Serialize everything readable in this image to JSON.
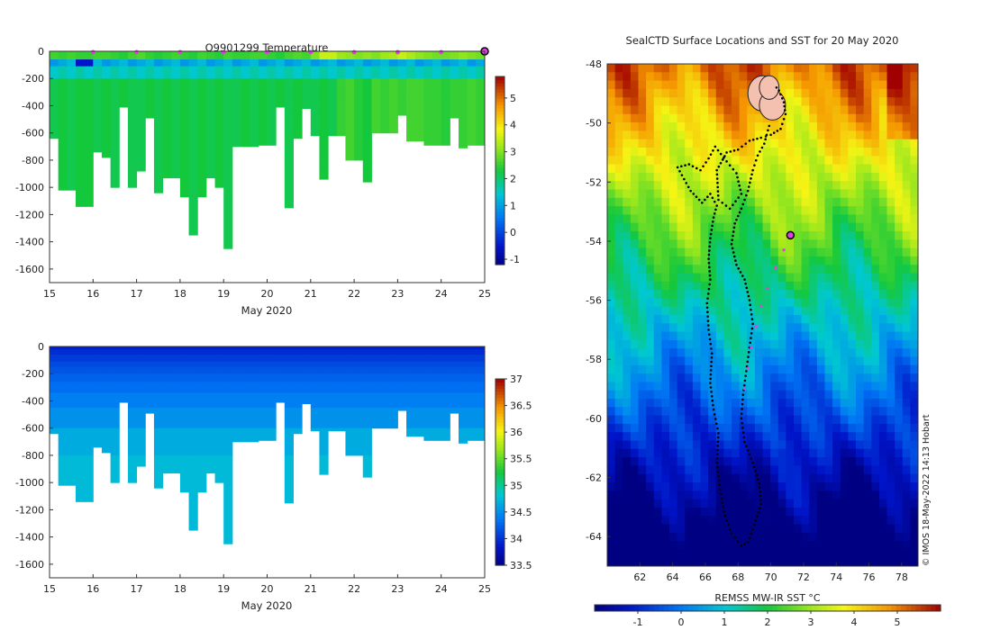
{
  "chart_data": [
    {
      "id": "temperature",
      "type": "heatmap",
      "title": "Q9901299  Temperature",
      "xlabel": "May 2020",
      "ylabel": "",
      "xlim": [
        15,
        25
      ],
      "ylim": [
        -1700,
        0
      ],
      "x_ticks": [
        15,
        16,
        17,
        18,
        19,
        20,
        21,
        22,
        23,
        24,
        25
      ],
      "y_ticks": [
        0,
        -200,
        -400,
        -600,
        -800,
        -1000,
        -1200,
        -1400,
        -1600
      ],
      "colorbar": {
        "min": -1.2,
        "max": 5.8,
        "ticks": [
          -1,
          0,
          1,
          2,
          3,
          4,
          5
        ],
        "labels": [
          "-1",
          "0",
          "1",
          "2",
          "3",
          "4",
          "5"
        ]
      },
      "markers_x": [
        16,
        17,
        18,
        19,
        20,
        21,
        22,
        23,
        24,
        25
      ],
      "profiles": {
        "x": [
          15.0,
          15.2,
          15.4,
          15.6,
          15.8,
          16.0,
          16.2,
          16.4,
          16.6,
          16.8,
          17.0,
          17.2,
          17.4,
          17.6,
          17.8,
          18.0,
          18.2,
          18.4,
          18.6,
          18.8,
          19.0,
          19.2,
          19.4,
          19.6,
          19.8,
          20.0,
          20.2,
          20.4,
          20.6,
          20.8,
          21.0,
          21.2,
          21.4,
          21.6,
          21.8,
          22.0,
          22.2,
          22.4,
          22.6,
          22.8,
          23.0,
          23.2,
          23.4,
          23.6,
          23.8,
          24.0,
          24.2,
          24.4,
          24.6,
          24.8
        ],
        "max_depth": [
          640,
          1020,
          1020,
          1140,
          1140,
          740,
          780,
          1000,
          410,
          1000,
          880,
          490,
          1040,
          930,
          930,
          1070,
          1350,
          1070,
          930,
          1000,
          1450,
          700,
          700,
          700,
          690,
          690,
          410,
          1150,
          640,
          420,
          620,
          940,
          620,
          620,
          800,
          800,
          960,
          600,
          600,
          600,
          470,
          660,
          660,
          690,
          690,
          690,
          490,
          710,
          690,
          690
        ],
        "surface_temp": [
          2.6,
          2.5,
          2.6,
          2.5,
          2.5,
          2.6,
          2.6,
          2.5,
          2.4,
          2.6,
          2.7,
          2.5,
          2.4,
          2.5,
          2.6,
          2.5,
          2.4,
          2.6,
          2.5,
          2.4,
          2.6,
          2.5,
          2.5,
          2.6,
          2.6,
          2.5,
          2.4,
          2.6,
          2.7,
          2.6,
          3.0,
          3.5,
          3.5,
          3.2,
          3.1,
          3.0,
          3.1,
          3.0,
          3.2,
          3.3,
          3.5,
          3.3,
          3.1,
          3.0,
          2.9,
          2.9,
          3.0,
          3.1,
          3.0,
          2.9
        ],
        "deep_temp": [
          2.2,
          2.3,
          2.2,
          2.3,
          2.3,
          2.2,
          2.3,
          2.2,
          2.3,
          2.2,
          2.2,
          2.3,
          2.2,
          2.3,
          2.2,
          2.3,
          2.2,
          2.3,
          2.2,
          2.3,
          2.2,
          2.2,
          2.3,
          2.2,
          2.3,
          2.2,
          2.3,
          2.2,
          2.3,
          2.2,
          2.2,
          2.3,
          2.2,
          2.5,
          2.6,
          2.4,
          2.3,
          2.6,
          2.5,
          2.6,
          2.5,
          2.6,
          2.6,
          2.5,
          2.5,
          2.4,
          2.5,
          2.5,
          2.6,
          2.5
        ]
      }
    },
    {
      "id": "salinity",
      "type": "heatmap",
      "title": "",
      "xlabel": "May 2020",
      "ylabel": "",
      "xlim": [
        15,
        25
      ],
      "ylim": [
        -1700,
        0
      ],
      "x_ticks": [
        15,
        16,
        17,
        18,
        19,
        20,
        21,
        22,
        23,
        24,
        25
      ],
      "y_ticks": [
        0,
        -200,
        -400,
        -600,
        -800,
        -1000,
        -1200,
        -1400,
        -1600
      ],
      "colorbar": {
        "min": 33.5,
        "max": 37.0,
        "ticks": [
          33.5,
          34,
          34.5,
          35,
          35.5,
          36,
          36.5,
          37
        ],
        "labels": [
          "33.5",
          "34",
          "34.5",
          "35",
          "35.5",
          "36",
          "36.5",
          "37"
        ]
      },
      "surface_sal": 33.9,
      "deep_sal": 34.75
    },
    {
      "id": "sst_map",
      "type": "heatmap",
      "title": "SealCTD Surface Locations and SST for 20 May 2020",
      "xlabel": "",
      "ylabel": "",
      "xlim": [
        60,
        79
      ],
      "ylim": [
        -65,
        -48
      ],
      "x_ticks": [
        62,
        64,
        66,
        68,
        70,
        72,
        74,
        76,
        78
      ],
      "y_ticks": [
        -48,
        -50,
        -52,
        -54,
        -56,
        -58,
        -60,
        -62,
        -64
      ],
      "colorbar": {
        "label": "REMSS MW-IR SST °C",
        "min": -2.0,
        "max": 6.0,
        "ticks": [
          -1,
          0,
          1,
          2,
          3,
          4,
          5
        ],
        "labels": [
          "-1",
          "0",
          "1",
          "2",
          "3",
          "4",
          "5"
        ]
      },
      "credit": "© IMOS 18-May-2022 14:13 Hobart",
      "current_position": [
        71.2,
        -53.8
      ],
      "recent_track": [
        [
          71.2,
          -53.8
        ],
        [
          70.8,
          -54.3
        ],
        [
          70.3,
          -54.9
        ],
        [
          69.8,
          -55.6
        ],
        [
          69.4,
          -56.2
        ],
        [
          69.1,
          -56.9
        ],
        [
          68.8,
          -57.6
        ],
        [
          68.6,
          -58.3
        ],
        [
          68.4,
          -59.0
        ]
      ],
      "track": [
        [
          68.2,
          -64.3
        ],
        [
          67.6,
          -63.9
        ],
        [
          67.2,
          -63.3
        ],
        [
          66.9,
          -62.4
        ],
        [
          66.7,
          -61.5
        ],
        [
          66.8,
          -60.5
        ],
        [
          66.5,
          -59.7
        ],
        [
          66.3,
          -58.8
        ],
        [
          66.4,
          -57.8
        ],
        [
          66.2,
          -57.0
        ],
        [
          66.1,
          -56.1
        ],
        [
          66.3,
          -55.3
        ],
        [
          66.2,
          -54.6
        ],
        [
          66.3,
          -53.9
        ],
        [
          66.5,
          -53.2
        ],
        [
          66.7,
          -52.8
        ],
        [
          66.3,
          -52.4
        ],
        [
          65.8,
          -52.7
        ],
        [
          65.1,
          -52.3
        ],
        [
          64.7,
          -51.9
        ],
        [
          64.3,
          -51.5
        ],
        [
          65.0,
          -51.4
        ],
        [
          65.7,
          -51.6
        ],
        [
          66.2,
          -51.2
        ],
        [
          66.6,
          -50.8
        ],
        [
          67.3,
          -51.3
        ],
        [
          67.9,
          -51.7
        ],
        [
          68.2,
          -52.4
        ],
        [
          67.5,
          -52.9
        ],
        [
          66.8,
          -52.6
        ],
        [
          66.7,
          -51.6
        ],
        [
          67.3,
          -51.0
        ],
        [
          68.0,
          -50.9
        ],
        [
          68.7,
          -50.6
        ],
        [
          69.4,
          -50.5
        ],
        [
          70.0,
          -50.4
        ],
        [
          70.6,
          -50.2
        ],
        [
          70.9,
          -49.7
        ],
        [
          70.8,
          -49.3
        ],
        [
          70.5,
          -48.9
        ],
        [
          70.2,
          -48.7
        ]
      ],
      "track_return": [
        [
          69.9,
          -50.1
        ],
        [
          69.6,
          -50.7
        ],
        [
          69.2,
          -51.1
        ],
        [
          68.9,
          -51.6
        ],
        [
          68.6,
          -52.3
        ],
        [
          68.2,
          -52.9
        ],
        [
          67.8,
          -53.4
        ],
        [
          67.6,
          -54.1
        ],
        [
          67.9,
          -54.8
        ],
        [
          68.4,
          -55.3
        ],
        [
          68.7,
          -56.0
        ],
        [
          68.9,
          -56.8
        ],
        [
          68.7,
          -57.6
        ],
        [
          68.5,
          -58.4
        ],
        [
          68.3,
          -59.2
        ],
        [
          68.2,
          -60.0
        ],
        [
          68.4,
          -60.8
        ],
        [
          68.9,
          -61.5
        ],
        [
          69.3,
          -62.2
        ],
        [
          69.4,
          -62.9
        ],
        [
          69.0,
          -63.6
        ],
        [
          68.6,
          -64.2
        ],
        [
          68.2,
          -64.3
        ]
      ],
      "islands": [
        [
          69.5,
          -49.0,
          0.9,
          0.6
        ],
        [
          70.1,
          -49.4,
          0.8,
          0.5
        ],
        [
          69.9,
          -48.8,
          0.6,
          0.4
        ]
      ]
    }
  ]
}
